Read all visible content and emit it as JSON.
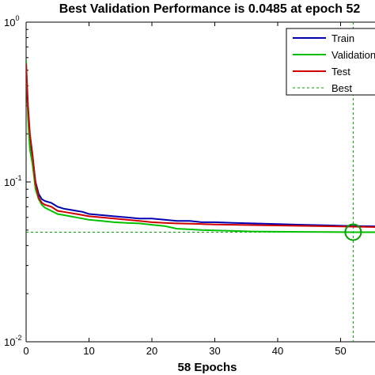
{
  "chart_data": {
    "type": "line",
    "title": "Best Validation Performance is 0.0485 at epoch 52",
    "xlabel": "58 Epochs",
    "ylabel": "",
    "xlim": [
      0,
      58
    ],
    "ylim": [
      0.01,
      1
    ],
    "y_scale": "log",
    "x_ticks": [
      0,
      10,
      20,
      30,
      40,
      50
    ],
    "y_ticks": [
      {
        "value": 1,
        "base": "10",
        "exp": "0"
      },
      {
        "value": 0.1,
        "base": "10",
        "exp": "-1"
      },
      {
        "value": 0.01,
        "base": "10",
        "exp": "-2"
      }
    ],
    "grid": false,
    "legend_position": "top-right",
    "best": {
      "epoch": 52,
      "value": 0.0485,
      "label": "Best",
      "color": "#00a000"
    },
    "series": [
      {
        "name": "Train",
        "color": "#0000b0",
        "x": [
          0,
          0.3,
          0.6,
          1,
          1.5,
          2,
          2.5,
          3,
          4,
          5,
          6,
          7,
          8,
          9,
          10,
          12,
          14,
          16,
          18,
          20,
          22,
          24,
          26,
          28,
          30,
          33,
          36,
          40,
          44,
          48,
          52,
          55,
          58
        ],
        "y": [
          0.47,
          0.28,
          0.19,
          0.145,
          0.1,
          0.084,
          0.078,
          0.076,
          0.074,
          0.07,
          0.068,
          0.067,
          0.066,
          0.065,
          0.063,
          0.062,
          0.061,
          0.06,
          0.059,
          0.059,
          0.058,
          0.057,
          0.057,
          0.056,
          0.056,
          0.0555,
          0.055,
          0.0545,
          0.054,
          0.0535,
          0.053,
          0.0528,
          0.0525
        ]
      },
      {
        "name": "Validation",
        "color": "#00c000",
        "x": [
          0,
          0.3,
          0.6,
          1,
          1.5,
          2,
          2.5,
          3,
          4,
          5,
          6,
          7,
          8,
          9,
          10,
          12,
          14,
          16,
          18,
          20,
          22,
          24,
          26,
          28,
          30,
          33,
          36,
          40,
          44,
          48,
          52,
          55,
          58
        ],
        "y": [
          0.58,
          0.25,
          0.16,
          0.13,
          0.09,
          0.078,
          0.072,
          0.069,
          0.066,
          0.063,
          0.062,
          0.061,
          0.06,
          0.059,
          0.058,
          0.057,
          0.056,
          0.0555,
          0.055,
          0.054,
          0.053,
          0.051,
          0.0505,
          0.05,
          0.0498,
          0.0494,
          0.049,
          0.0488,
          0.0487,
          0.0486,
          0.0485,
          0.0485,
          0.0485
        ]
      },
      {
        "name": "Test",
        "color": "#d00000",
        "x": [
          0,
          0.3,
          0.6,
          1,
          1.5,
          2,
          2.5,
          3,
          4,
          5,
          6,
          7,
          8,
          9,
          10,
          12,
          14,
          16,
          18,
          20,
          22,
          24,
          26,
          28,
          30,
          33,
          36,
          40,
          44,
          48,
          52,
          55,
          58
        ],
        "y": [
          0.55,
          0.3,
          0.2,
          0.15,
          0.098,
          0.08,
          0.074,
          0.072,
          0.07,
          0.066,
          0.065,
          0.064,
          0.063,
          0.062,
          0.061,
          0.06,
          0.059,
          0.058,
          0.057,
          0.056,
          0.0555,
          0.055,
          0.0548,
          0.0545,
          0.0542,
          0.054,
          0.0537,
          0.0534,
          0.0531,
          0.0528,
          0.0525,
          0.0523,
          0.052
        ]
      }
    ]
  }
}
